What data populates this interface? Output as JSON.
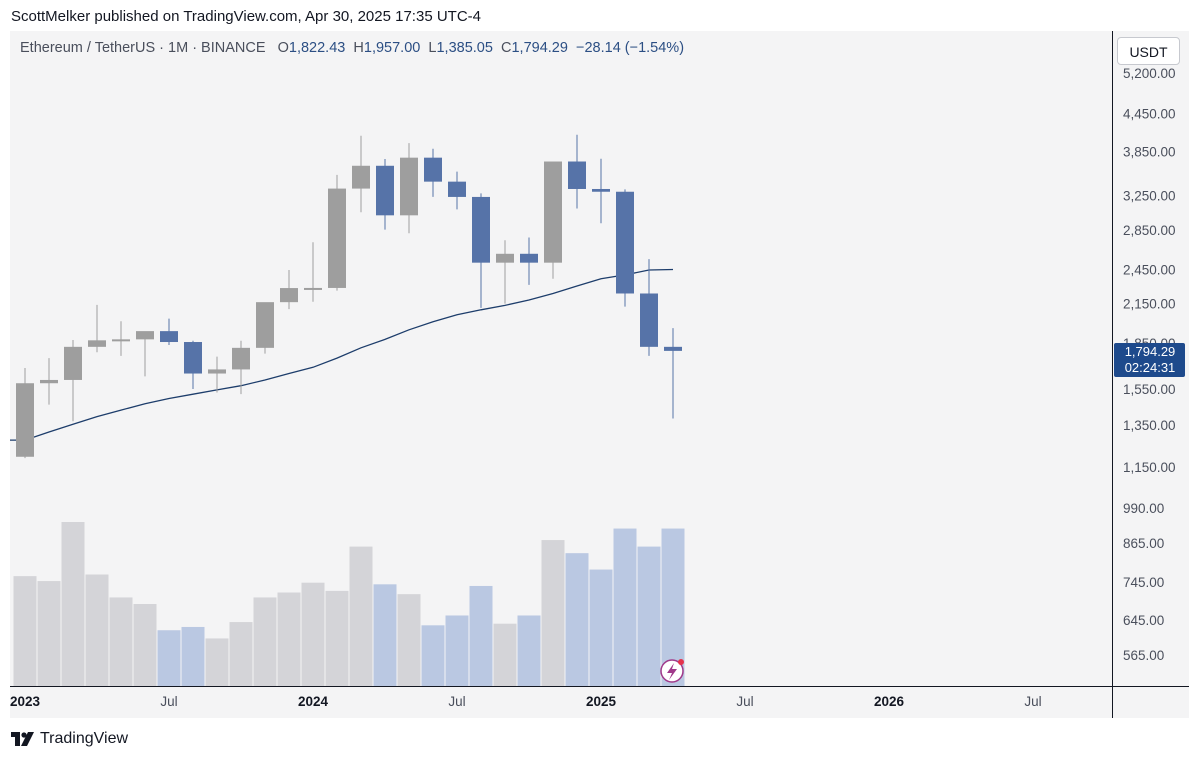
{
  "header": {
    "text": "ScottMelker published on TradingView.com, Apr 30, 2025 17:35 UTC-4"
  },
  "legend": {
    "symbol": "Ethereum / TetherUS · 1M · BINANCE",
    "open_label": "O",
    "open": "1,822.43",
    "high_label": "H",
    "high": "1,957.00",
    "low_label": "L",
    "low": "1,385.05",
    "close_label": "C",
    "close": "1,794.29",
    "change": "−28.14 (−1.54%)"
  },
  "currency_button": {
    "label": "USDT"
  },
  "price_tag": {
    "price": "1,794.29",
    "countdown": "02:24:31"
  },
  "footer": {
    "brand": "TradingView"
  },
  "colors": {
    "up": "#9e9e9e",
    "down": "#5673a8",
    "ma": "#1d3d6b",
    "volume_up": "#d4d4d8",
    "volume_down": "#bac8e2",
    "price_tag_bg": "#1e4a8c"
  },
  "chart_data": {
    "type": "candlestick",
    "symbol": "Ethereum / TetherUS",
    "interval": "1M",
    "exchange": "BINANCE",
    "price_scale": "log",
    "y_axis_ticks": [
      "5,200.00",
      "4,450.00",
      "3,850.00",
      "3,250.00",
      "2,850.00",
      "2,450.00",
      "2,150.00",
      "1,850.00",
      "1,550.00",
      "1,350.00",
      "1,150.00",
      "990.00",
      "865.00",
      "745.00",
      "645.00",
      "565.00"
    ],
    "x_axis_ticks": [
      {
        "label": "2023",
        "bold": true,
        "date": "2023-01"
      },
      {
        "label": "Jul",
        "bold": false,
        "date": "2023-07"
      },
      {
        "label": "2024",
        "bold": true,
        "date": "2024-01"
      },
      {
        "label": "Jul",
        "bold": false,
        "date": "2024-07"
      },
      {
        "label": "2025",
        "bold": true,
        "date": "2025-01"
      },
      {
        "label": "Jul",
        "bold": false,
        "date": "2025-07"
      },
      {
        "label": "2026",
        "bold": true,
        "date": "2026-01"
      },
      {
        "label": "Jul",
        "bold": false,
        "date": "2026-07"
      }
    ],
    "candles": [
      {
        "date": "2023-01",
        "o": 1196,
        "h": 1680,
        "l": 1190,
        "c": 1585,
        "vol": 0.67
      },
      {
        "date": "2023-02",
        "o": 1585,
        "h": 1745,
        "l": 1460,
        "c": 1605,
        "vol": 0.64
      },
      {
        "date": "2023-03",
        "o": 1605,
        "h": 1870,
        "l": 1370,
        "c": 1822,
        "vol": 1.0
      },
      {
        "date": "2023-04",
        "o": 1822,
        "h": 2140,
        "l": 1785,
        "c": 1868,
        "vol": 0.68
      },
      {
        "date": "2023-05",
        "o": 1868,
        "h": 2010,
        "l": 1760,
        "c": 1875,
        "vol": 0.54
      },
      {
        "date": "2023-06",
        "o": 1875,
        "h": 1930,
        "l": 1627,
        "c": 1935,
        "vol": 0.5
      },
      {
        "date": "2023-07",
        "o": 1935,
        "h": 2030,
        "l": 1835,
        "c": 1856,
        "vol": 0.34
      },
      {
        "date": "2023-08",
        "o": 1856,
        "h": 1865,
        "l": 1550,
        "c": 1645,
        "vol": 0.36
      },
      {
        "date": "2023-09",
        "o": 1645,
        "h": 1755,
        "l": 1530,
        "c": 1671,
        "vol": 0.29
      },
      {
        "date": "2023-10",
        "o": 1671,
        "h": 1865,
        "l": 1520,
        "c": 1815,
        "vol": 0.39
      },
      {
        "date": "2023-11",
        "o": 1815,
        "h": 2135,
        "l": 1775,
        "c": 2162,
        "vol": 0.54
      },
      {
        "date": "2023-12",
        "o": 2162,
        "h": 2445,
        "l": 2105,
        "c": 2282,
        "vol": 0.57
      },
      {
        "date": "2024-01",
        "o": 2282,
        "h": 2720,
        "l": 2165,
        "c": 2283,
        "vol": 0.63
      },
      {
        "date": "2024-02",
        "o": 2283,
        "h": 3520,
        "l": 2260,
        "c": 3340,
        "vol": 0.58
      },
      {
        "date": "2024-03",
        "o": 3340,
        "h": 4090,
        "l": 3050,
        "c": 3645,
        "vol": 0.85
      },
      {
        "date": "2024-04",
        "o": 3645,
        "h": 3740,
        "l": 2855,
        "c": 3015,
        "vol": 0.62
      },
      {
        "date": "2024-05",
        "o": 3015,
        "h": 3975,
        "l": 2815,
        "c": 3760,
        "vol": 0.56
      },
      {
        "date": "2024-06",
        "o": 3760,
        "h": 3890,
        "l": 3235,
        "c": 3430,
        "vol": 0.37
      },
      {
        "date": "2024-07",
        "o": 3430,
        "h": 3565,
        "l": 3085,
        "c": 3235,
        "vol": 0.43
      },
      {
        "date": "2024-08",
        "o": 3235,
        "h": 3280,
        "l": 2115,
        "c": 2515,
        "vol": 0.61
      },
      {
        "date": "2024-09",
        "o": 2515,
        "h": 2740,
        "l": 2150,
        "c": 2602,
        "vol": 0.38
      },
      {
        "date": "2024-10",
        "o": 2602,
        "h": 2770,
        "l": 2310,
        "c": 2515,
        "vol": 0.43
      },
      {
        "date": "2024-11",
        "o": 2515,
        "h": 3700,
        "l": 2365,
        "c": 3705,
        "vol": 0.89
      },
      {
        "date": "2024-12",
        "o": 3705,
        "h": 4105,
        "l": 3095,
        "c": 3335,
        "vol": 0.81
      },
      {
        "date": "2025-01",
        "o": 3335,
        "h": 3745,
        "l": 2925,
        "c": 3300,
        "vol": 0.71
      },
      {
        "date": "2025-02",
        "o": 3300,
        "h": 3330,
        "l": 2125,
        "c": 2235,
        "vol": 0.96
      },
      {
        "date": "2025-03",
        "o": 2235,
        "h": 2550,
        "l": 1760,
        "c": 1822,
        "vol": 0.85
      },
      {
        "date": "2025-04",
        "o": 1822,
        "h": 1957,
        "l": 1385,
        "c": 1794,
        "vol": 0.96
      }
    ],
    "moving_average": {
      "dates": [
        "2023-01",
        "2023-02",
        "2023-03",
        "2023-04",
        "2023-05",
        "2023-06",
        "2023-07",
        "2023-08",
        "2023-09",
        "2023-10",
        "2023-11",
        "2023-12",
        "2024-01",
        "2024-02",
        "2024-03",
        "2024-04",
        "2024-05",
        "2024-06",
        "2024-07",
        "2024-08",
        "2024-09",
        "2024-10",
        "2024-11",
        "2024-12",
        "2025-01",
        "2025-02",
        "2025-03",
        "2025-04"
      ],
      "values": [
        1275,
        1315,
        1355,
        1395,
        1430,
        1465,
        1495,
        1520,
        1545,
        1570,
        1605,
        1645,
        1685,
        1745,
        1815,
        1875,
        1945,
        2005,
        2060,
        2100,
        2135,
        2180,
        2235,
        2300,
        2365,
        2400,
        2445,
        2450
      ]
    }
  }
}
